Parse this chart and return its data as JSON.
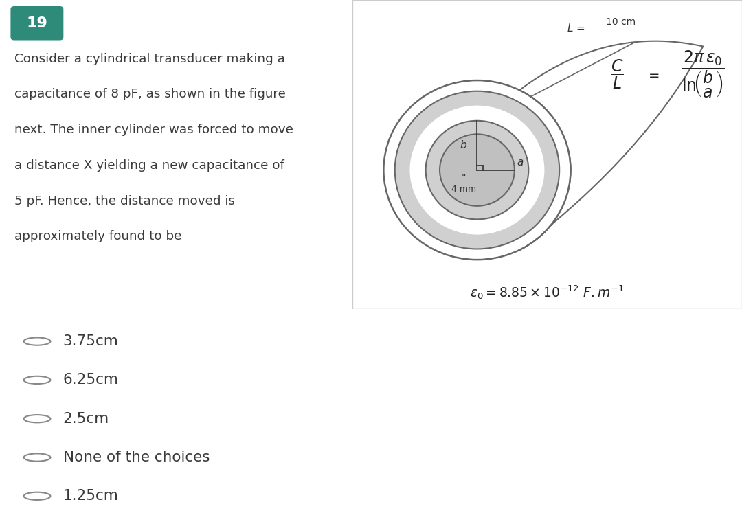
{
  "question_number": "19",
  "question_number_bg": "#2e8b7a",
  "question_number_color": "#ffffff",
  "question_text_lines": [
    "Consider a cylindrical transducer making a",
    "capacitance of 8 pF, as shown in the figure",
    "next. The inner cylinder was forced to move",
    "a distance X yielding a new capacitance of",
    "5 pF. Hence, the distance moved is",
    "approximately found to be"
  ],
  "question_text_color": "#3a3a3a",
  "top_bg_color": "#dde5ea",
  "bottom_bg_color": "#ffffff",
  "figure_bg_color": "#ffffff",
  "figure_border_color": "#cccccc",
  "choices": [
    "3.75cm",
    "6.25cm",
    "2.5cm",
    "None of the choices",
    "1.25cm"
  ],
  "choice_color": "#3a3a3a",
  "radio_color": "#888888",
  "cylinder_line_color": "#666666",
  "cylinder_wall_color": "#d0d0d0",
  "cylinder_inner_color": "#c0c0c0",
  "formula_color": "#222222",
  "epsilon_text": "$\\varepsilon_0 = 8.85 \\times 10^{-12}\\ F.m^{-1}$"
}
